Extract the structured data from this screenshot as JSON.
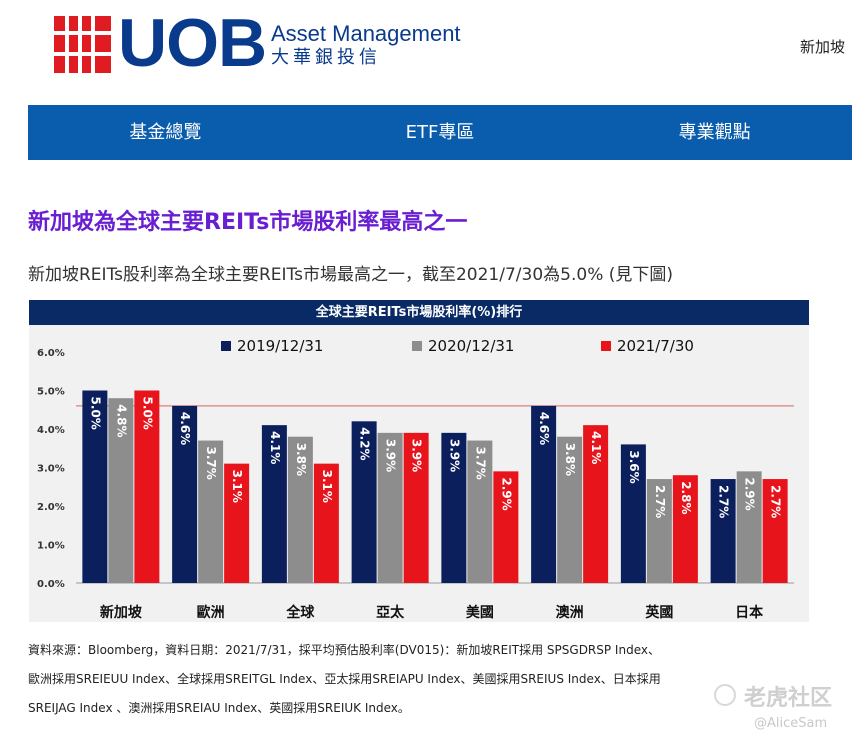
{
  "brand": {
    "logo_text": "UOB",
    "name_en": "Asset Management",
    "name_cn": "大華銀投信",
    "logo_icon": "uob-grid-icon",
    "color_red": "#e11b22",
    "color_blue": "#0a3a8c"
  },
  "header": {
    "region_label": "新加坡"
  },
  "nav": {
    "bg": "#0a5cad",
    "items": [
      {
        "label": "基金總覽"
      },
      {
        "label": "ETF專區"
      },
      {
        "label": "專業觀點"
      }
    ]
  },
  "article": {
    "headline": "新加坡為全球主要REITs市場股利率最高之一",
    "headline_color": "#6a1ed1",
    "intro": "新加坡REITs股利率為全球主要REITs市場最高之一，截至2021/7/30為5.0% (見下圖)"
  },
  "chart_data": {
    "type": "bar",
    "title": "全球主要REITs市場股利率(%)排行",
    "title_bg": "#0a2a66",
    "categories": [
      "新加坡",
      "歐洲",
      "全球",
      "亞太",
      "美國",
      "澳洲",
      "英國",
      "日本"
    ],
    "series": [
      {
        "name": "2019/12/31",
        "color": "#0b1f5c",
        "values": [
          5.0,
          4.6,
          4.1,
          4.2,
          3.9,
          4.6,
          3.6,
          2.7
        ]
      },
      {
        "name": "2020/12/31",
        "color": "#8d8d8d",
        "values": [
          4.8,
          3.7,
          3.8,
          3.9,
          3.7,
          3.8,
          2.7,
          2.9
        ]
      },
      {
        "name": "2021/7/30",
        "color": "#e8141c",
        "values": [
          5.0,
          3.1,
          3.1,
          3.9,
          2.9,
          4.1,
          2.8,
          2.7
        ]
      }
    ],
    "data_labels": [
      [
        "5.0%",
        "4.6%",
        "4.1%",
        "4.2%",
        "3.9%",
        "4.6%",
        "3.6%",
        "2.7%"
      ],
      [
        "4.8%",
        "3.7%",
        "3.8%",
        "3.9%",
        "3.7%",
        "3.8%",
        "2.7%",
        "2.9%"
      ],
      [
        "5.0%",
        "3.1%",
        "3.1%",
        "3.9%",
        "2.9%",
        "4.1%",
        "2.8%",
        "2.7%"
      ]
    ],
    "y_ticks": [
      "0.0%",
      "1.0%",
      "2.0%",
      "3.0%",
      "4.0%",
      "5.0%",
      "6.0%"
    ],
    "ylim": [
      0,
      6
    ],
    "reference_line": 4.6,
    "reference_color": "#e08080",
    "legend_position": "top-center",
    "grid": false
  },
  "footnote": {
    "lines": [
      "資料來源：Bloomberg，資料日期：2021/7/31，採平均預估股利率(DV015)：新加坡REIT採用 SPSGDRSP Index、",
      "歐洲採用SREIEUU Index、全球採用SREITGL Index、亞太採用SREIAPU Index、美國採用SREIUS Index、日本採用",
      "SREIJAG Index 、澳洲採用SREIAU Index、英國採用SREIUK Index。"
    ]
  },
  "watermark": {
    "text": "老虎社区",
    "user": "@AliceSam",
    "icon": "tiger-logo-icon"
  }
}
